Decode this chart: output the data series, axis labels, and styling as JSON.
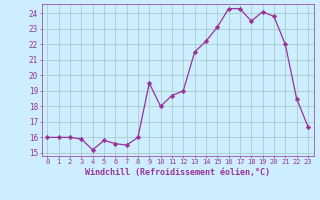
{
  "x": [
    0,
    1,
    2,
    3,
    4,
    5,
    6,
    7,
    8,
    9,
    10,
    11,
    12,
    13,
    14,
    15,
    16,
    17,
    18,
    19,
    20,
    21,
    22,
    23
  ],
  "y": [
    16.0,
    16.0,
    16.0,
    15.9,
    15.2,
    15.8,
    15.6,
    15.5,
    16.0,
    19.5,
    18.0,
    18.7,
    19.0,
    21.5,
    22.2,
    23.1,
    24.3,
    24.3,
    23.5,
    24.1,
    23.8,
    22.0,
    18.5,
    16.7
  ],
  "line_color": "#993399",
  "marker": "D",
  "marker_color": "#993399",
  "bg_color": "#cceeff",
  "grid_color": "#aacccc",
  "xlabel": "Windchill (Refroidissement éolien,°C)",
  "xlabel_color": "#993399",
  "tick_color": "#993399",
  "ylim": [
    14.8,
    24.6
  ],
  "yticks": [
    15,
    16,
    17,
    18,
    19,
    20,
    21,
    22,
    23,
    24
  ],
  "xlim": [
    -0.5,
    23.5
  ],
  "xticks": [
    0,
    1,
    2,
    3,
    4,
    5,
    6,
    7,
    8,
    9,
    10,
    11,
    12,
    13,
    14,
    15,
    16,
    17,
    18,
    19,
    20,
    21,
    22,
    23
  ]
}
